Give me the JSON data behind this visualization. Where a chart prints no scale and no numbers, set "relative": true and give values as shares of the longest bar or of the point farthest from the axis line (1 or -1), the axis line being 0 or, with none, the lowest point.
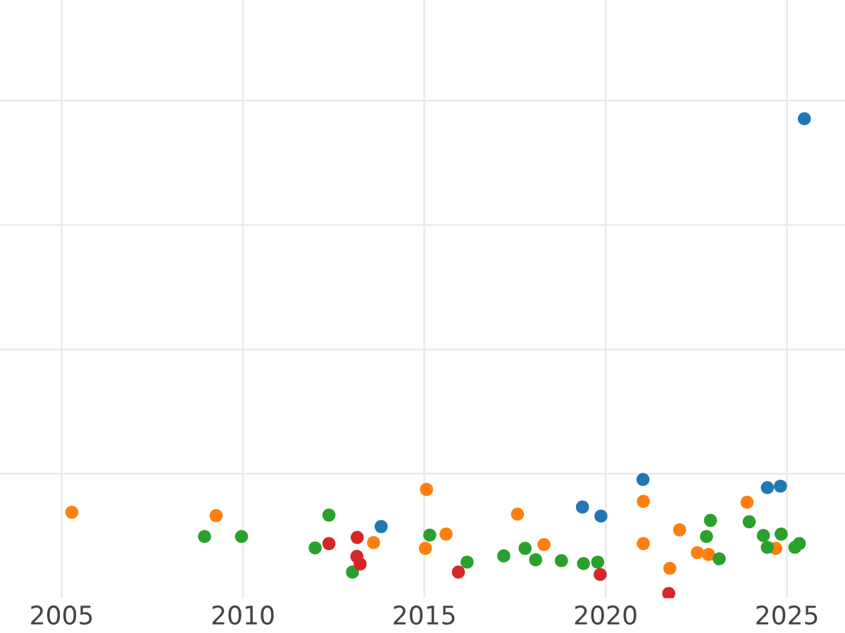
{
  "chart_data": {
    "type": "scatter",
    "relative": true,
    "xlim": [
      2003.3,
      2026.6
    ],
    "xticks": [
      2005,
      2010,
      2015,
      2020,
      2025
    ],
    "tick_labels": "x",
    "grid": true,
    "marker": "circle",
    "series": [
      {
        "color": "#1f77b4",
        "x": [
          2013.81,
          2019.36,
          2019.87,
          2021.03,
          2024.46,
          2024.82,
          2025.48
        ],
        "values": [
          0.141,
          0.182,
          0.163,
          0.24,
          0.223,
          0.226,
          1.0
        ]
      },
      {
        "color": "#ff7f0e",
        "x": [
          2005.28,
          2009.26,
          2013.6,
          2015.06,
          2015.03,
          2015.6,
          2017.57,
          2018.3,
          2021.04,
          2021.04,
          2022.04,
          2021.77,
          2022.53,
          2022.84,
          2023.9,
          2024.69
        ],
        "values": [
          0.171,
          0.164,
          0.107,
          0.219,
          0.095,
          0.125,
          0.167,
          0.103,
          0.194,
          0.105,
          0.134,
          0.053,
          0.086,
          0.082,
          0.192,
          0.095
        ]
      },
      {
        "color": "#2ca02c",
        "x": [
          2008.94,
          2009.96,
          2012.37,
          2011.99,
          2013.02,
          2015.15,
          2016.18,
          2017.19,
          2017.78,
          2018.07,
          2018.78,
          2019.39,
          2019.78,
          2022.89,
          2022.78,
          2023.13,
          2023.96,
          2024.35,
          2024.46,
          2024.84,
          2025.22,
          2025.34
        ],
        "values": [
          0.12,
          0.12,
          0.165,
          0.096,
          0.045,
          0.123,
          0.066,
          0.079,
          0.095,
          0.071,
          0.069,
          0.063,
          0.066,
          0.154,
          0.12,
          0.073,
          0.151,
          0.122,
          0.097,
          0.125,
          0.097,
          0.105
        ]
      },
      {
        "color": "#d62728",
        "x": [
          2012.37,
          2013.15,
          2013.14,
          2013.23,
          2015.94,
          2019.85,
          2021.74
        ],
        "values": [
          0.105,
          0.118,
          0.078,
          0.062,
          0.045,
          0.04,
          0.0
        ]
      }
    ]
  }
}
